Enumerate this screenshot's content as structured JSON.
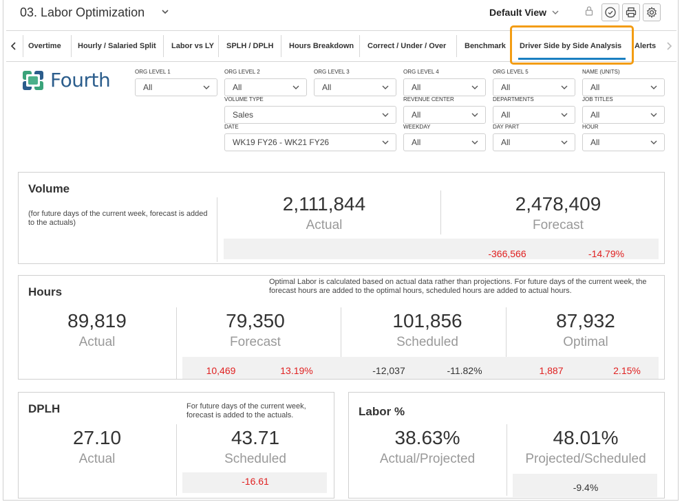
{
  "header": {
    "title": "03. Labor Optimization",
    "view": "Default View"
  },
  "tabs": [
    {
      "label": "Overtime"
    },
    {
      "label": "Hourly / Salaried Split"
    },
    {
      "label": "Labor vs LY"
    },
    {
      "label": "SPLH / DPLH"
    },
    {
      "label": "Hours Breakdown"
    },
    {
      "label": "Correct / Under / Over"
    },
    {
      "label": "Benchmark"
    },
    {
      "label": "Driver Side by Side Analysis",
      "active": true
    },
    {
      "label": "Alerts"
    }
  ],
  "logo": {
    "text": "Fourth",
    "color": "#2b5d8c"
  },
  "filters": {
    "org_level_1": {
      "label": "ORG LEVEL 1",
      "value": "All"
    },
    "org_level_2": {
      "label": "ORG LEVEL 2",
      "value": "All"
    },
    "org_level_3": {
      "label": "ORG LEVEL 3",
      "value": "All"
    },
    "org_level_4": {
      "label": "ORG LEVEL 4",
      "value": "All"
    },
    "org_level_5": {
      "label": "ORG LEVEL 5",
      "value": "All"
    },
    "name_units": {
      "label": "NAME (UNITS)",
      "value": "All"
    },
    "volume_type": {
      "label": "VOLUME TYPE",
      "value": "Sales"
    },
    "revenue_center": {
      "label": "REVENUE CENTER",
      "value": "All"
    },
    "departments": {
      "label": "DEPARTMENTS",
      "value": "All"
    },
    "job_titles": {
      "label": "JOB TITLES",
      "value": "All"
    },
    "date": {
      "label": "DATE",
      "value": "WK19 FY26 - WK21 FY26"
    },
    "weekday": {
      "label": "WEEKDAY",
      "value": "All"
    },
    "day_part": {
      "label": "DAY PART",
      "value": "All"
    },
    "hour": {
      "label": "HOUR",
      "value": "All"
    }
  },
  "volume": {
    "title": "Volume",
    "note": "(for future days of the current week, forecast is added to the actuals)",
    "actual": {
      "value": "2,111,844",
      "label": "Actual"
    },
    "forecast": {
      "value": "2,478,409",
      "label": "Forecast"
    },
    "diff": "-366,566",
    "diff_pct": "-14.79%"
  },
  "hours": {
    "title": "Hours",
    "note": "Optimal Labor is calculated based on actual data rather than projections. For future days of the current week, the forecast hours are added to the optimal hours, scheduled hours are added to actual hours.",
    "actual": {
      "value": "89,819",
      "label": "Actual"
    },
    "forecast": {
      "value": "79,350",
      "label": "Forecast",
      "diff": "10,469",
      "diff_pct": "13.19%"
    },
    "scheduled": {
      "value": "101,856",
      "label": "Scheduled",
      "diff": "-12,037",
      "diff_pct": "-11.82%"
    },
    "optimal": {
      "value": "87,932",
      "label": "Optimal",
      "diff": "1,887",
      "diff_pct": "2.15%"
    }
  },
  "dplh": {
    "title": "DPLH",
    "note": "For future days of the current week, forecast is added to the actuals.",
    "actual": {
      "value": "27.10",
      "label": "Actual"
    },
    "scheduled": {
      "value": "43.71",
      "label": "Scheduled"
    },
    "diff": "-16.61"
  },
  "labor_pct": {
    "title": "Labor %",
    "actual_projected": {
      "value": "38.63%",
      "label": "Actual/Projected"
    },
    "projected_scheduled": {
      "value": "48.01%",
      "label": "Projected/Scheduled"
    },
    "diff": "-9.4%"
  },
  "colors": {
    "accent": "#1a7fc1",
    "highlight": "#f39c12",
    "negative": "#e02020"
  }
}
